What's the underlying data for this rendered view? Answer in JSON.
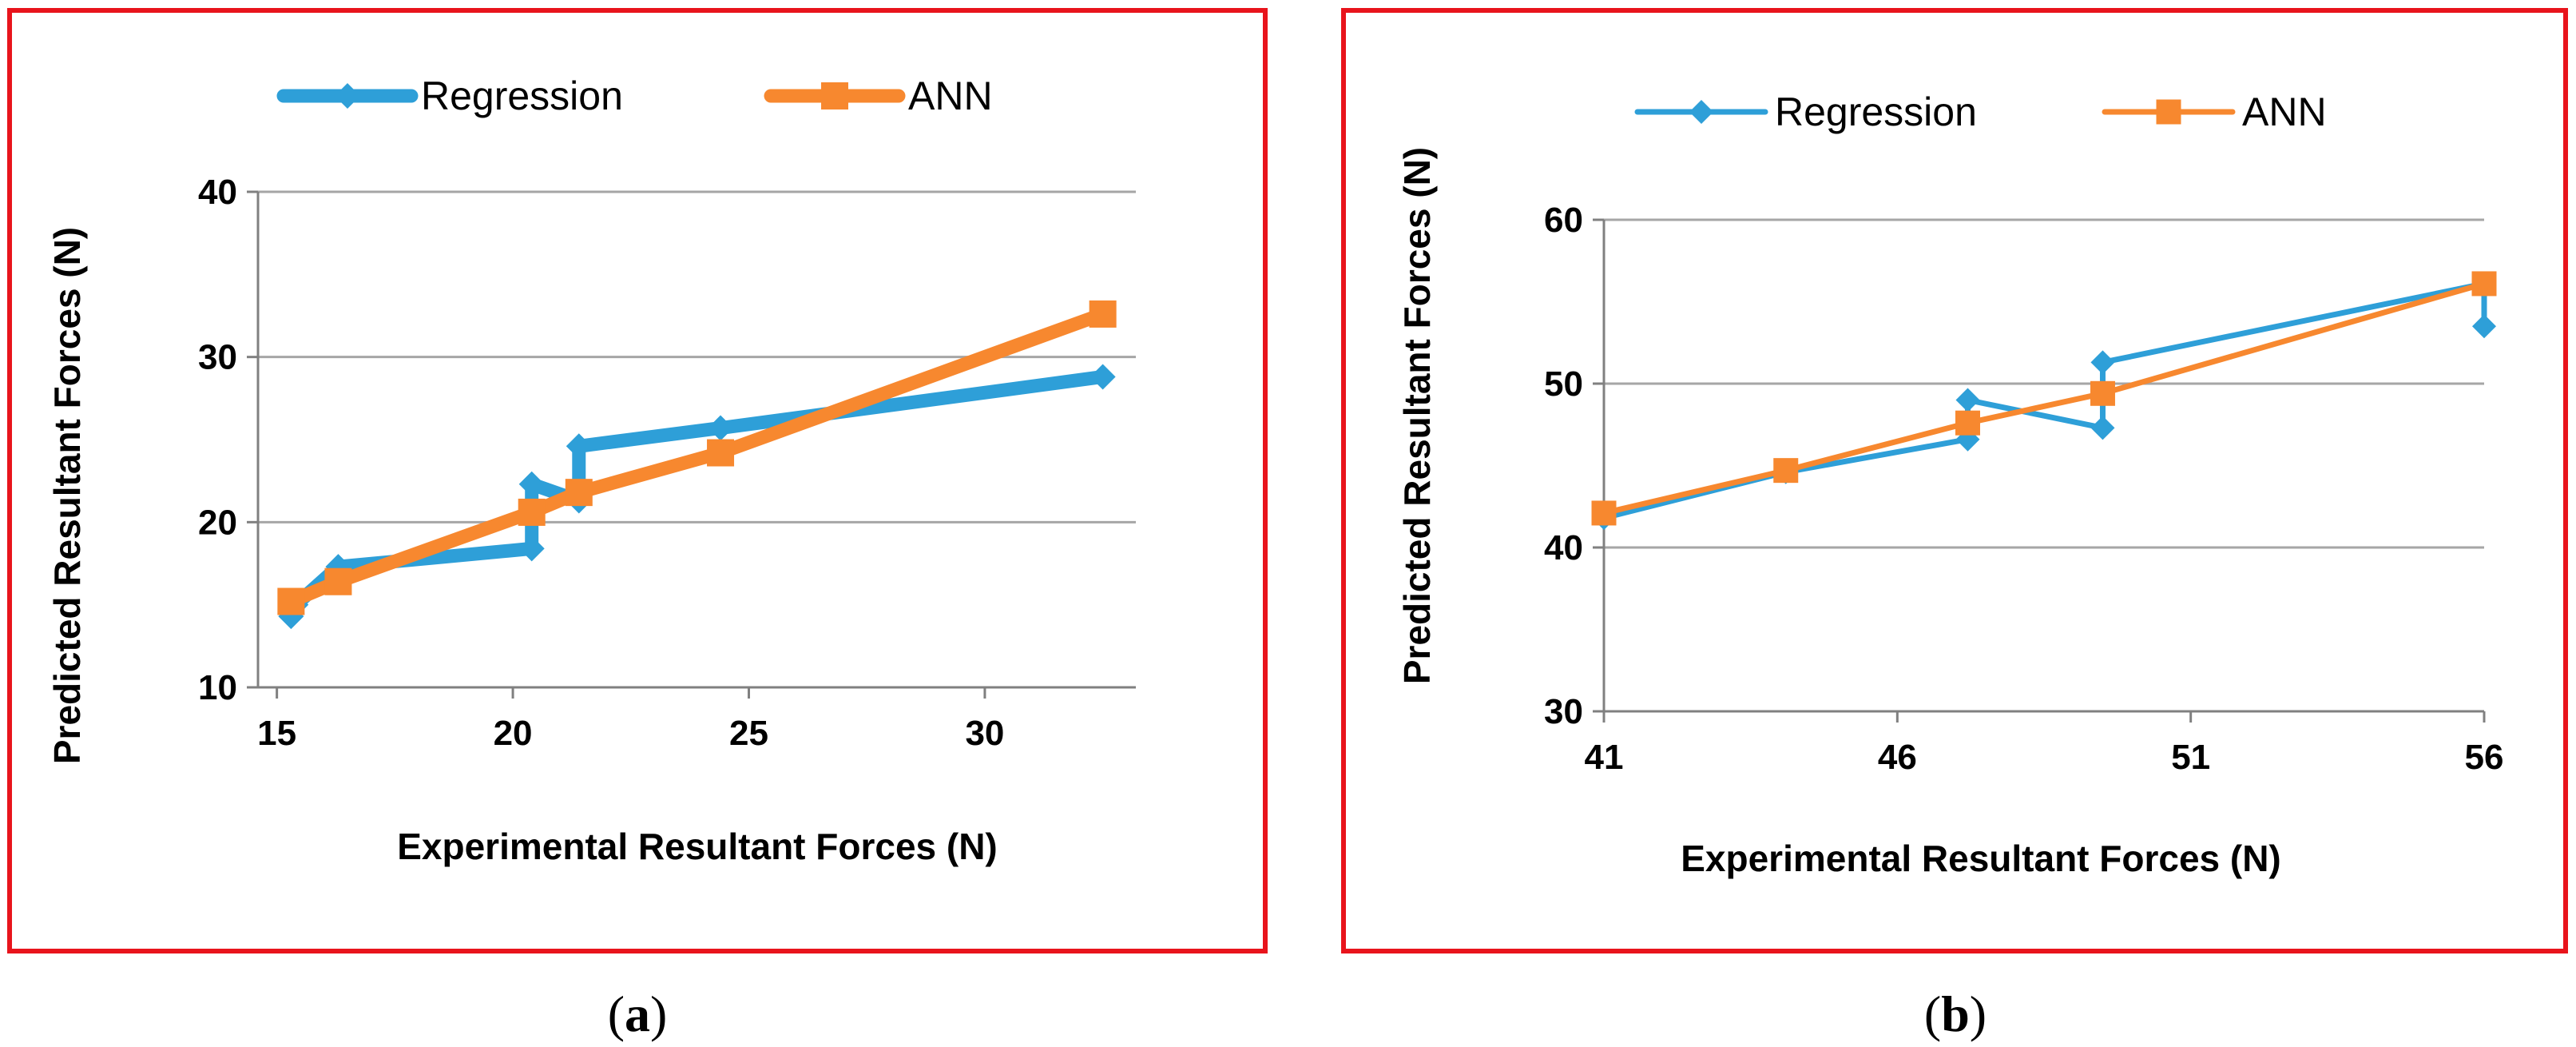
{
  "colors": {
    "regression": "#2e9fd8",
    "ann": "#f7882f",
    "frame": "#e8141c",
    "grid": "#a6a6a6",
    "axis": "#808080",
    "text": "#000000"
  },
  "chart_data": [
    {
      "type": "line",
      "panel_label": "a",
      "xlabel": "Experimental Resultant Forces (N)",
      "ylabel": "Predicted Resultant Forces (N)",
      "xlim": [
        14.6,
        33.2
      ],
      "ylim": [
        10,
        40
      ],
      "xticks": [
        "15",
        "20",
        "25",
        "30"
      ],
      "xtick_values": [
        15,
        20,
        25,
        30
      ],
      "yticks": [
        "10",
        "20",
        "30",
        "40"
      ],
      "ytick_values": [
        10,
        20,
        30,
        40
      ],
      "grid": "horizontal",
      "legend_position": "top",
      "series": [
        {
          "name": "Regression",
          "marker": "diamond",
          "x": [
            15.3,
            15.4,
            16.3,
            20.4,
            20.4,
            21.4,
            21.4,
            24.4,
            32.5
          ],
          "y": [
            14.3,
            15.0,
            17.3,
            18.4,
            22.3,
            21.3,
            24.6,
            25.7,
            28.8
          ]
        },
        {
          "name": "ANN",
          "marker": "square",
          "x": [
            15.3,
            16.3,
            20.4,
            21.4,
            24.4,
            32.5
          ],
          "y": [
            15.2,
            16.4,
            20.6,
            21.8,
            24.2,
            32.6
          ]
        }
      ]
    },
    {
      "type": "line",
      "panel_label": "b",
      "xlabel": "Experimental Resultant Forces (N)",
      "ylabel": "Predicted Resultant Forces (N)",
      "xlim": [
        41,
        56
      ],
      "ylim": [
        30,
        60
      ],
      "xticks": [
        "41",
        "46",
        "51",
        "56"
      ],
      "xtick_values": [
        41,
        46,
        51,
        56
      ],
      "yticks": [
        "30",
        "40",
        "50",
        "60"
      ],
      "ytick_values": [
        30,
        40,
        50,
        60
      ],
      "grid": "horizontal",
      "legend_position": "top",
      "series": [
        {
          "name": "Regression",
          "marker": "diamond",
          "x": [
            41.0,
            44.1,
            47.2,
            47.2,
            49.5,
            49.5,
            56.0,
            56.0
          ],
          "y": [
            41.8,
            44.6,
            46.6,
            49.0,
            47.3,
            51.3,
            56.1,
            53.5
          ]
        },
        {
          "name": "ANN",
          "marker": "square",
          "x": [
            41.0,
            44.1,
            47.2,
            49.5,
            56.0
          ],
          "y": [
            42.1,
            44.7,
            47.6,
            49.4,
            56.1
          ]
        }
      ]
    }
  ]
}
